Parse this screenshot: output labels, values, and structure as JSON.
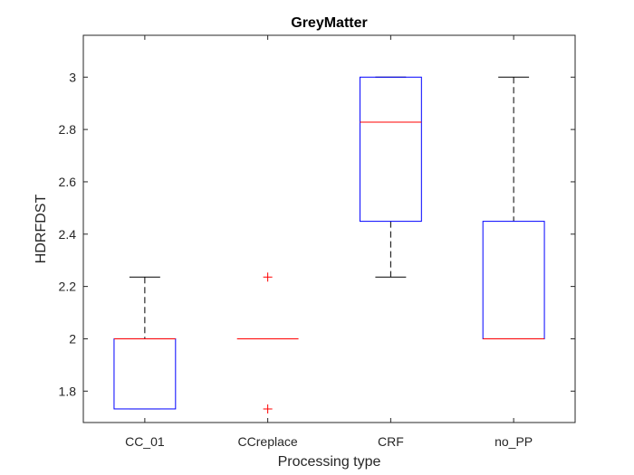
{
  "chart_data": {
    "type": "boxplot",
    "title": "GreyMatter",
    "xlabel": "Processing type",
    "ylabel": "HDRFDST",
    "ylim": [
      1.68,
      3.16
    ],
    "yticks": [
      1.8,
      2,
      2.2,
      2.4,
      2.6,
      2.8,
      3
    ],
    "ytick_labels": [
      "1.8",
      "2",
      "2.2",
      "2.4",
      "2.6",
      "2.8",
      "3"
    ],
    "categories": [
      "CC_01",
      "CCreplace",
      "CRF",
      "no_PP"
    ],
    "boxes": [
      {
        "category": "CC_01",
        "whisker_low": 1.732,
        "q1": 1.732,
        "median": 2.0,
        "q3": 2.0,
        "whisker_high": 2.236,
        "outliers": []
      },
      {
        "category": "CCreplace",
        "whisker_low": 2.0,
        "q1": 2.0,
        "median": 2.0,
        "q3": 2.0,
        "whisker_high": 2.0,
        "outliers": [
          2.236,
          1.732
        ]
      },
      {
        "category": "CRF",
        "whisker_low": 2.236,
        "q1": 2.449,
        "median": 2.828,
        "q3": 3.0,
        "whisker_high": 3.0,
        "outliers": []
      },
      {
        "category": "no_PP",
        "whisker_low": 2.0,
        "q1": 2.0,
        "median": 2.0,
        "q3": 2.449,
        "whisker_high": 3.0,
        "outliers": []
      }
    ],
    "grid": false,
    "colors": {
      "box": "#0000ff",
      "median": "#ff0000",
      "whisker": "#000000",
      "outlier": "#ff0000",
      "axis": "#262626"
    }
  }
}
